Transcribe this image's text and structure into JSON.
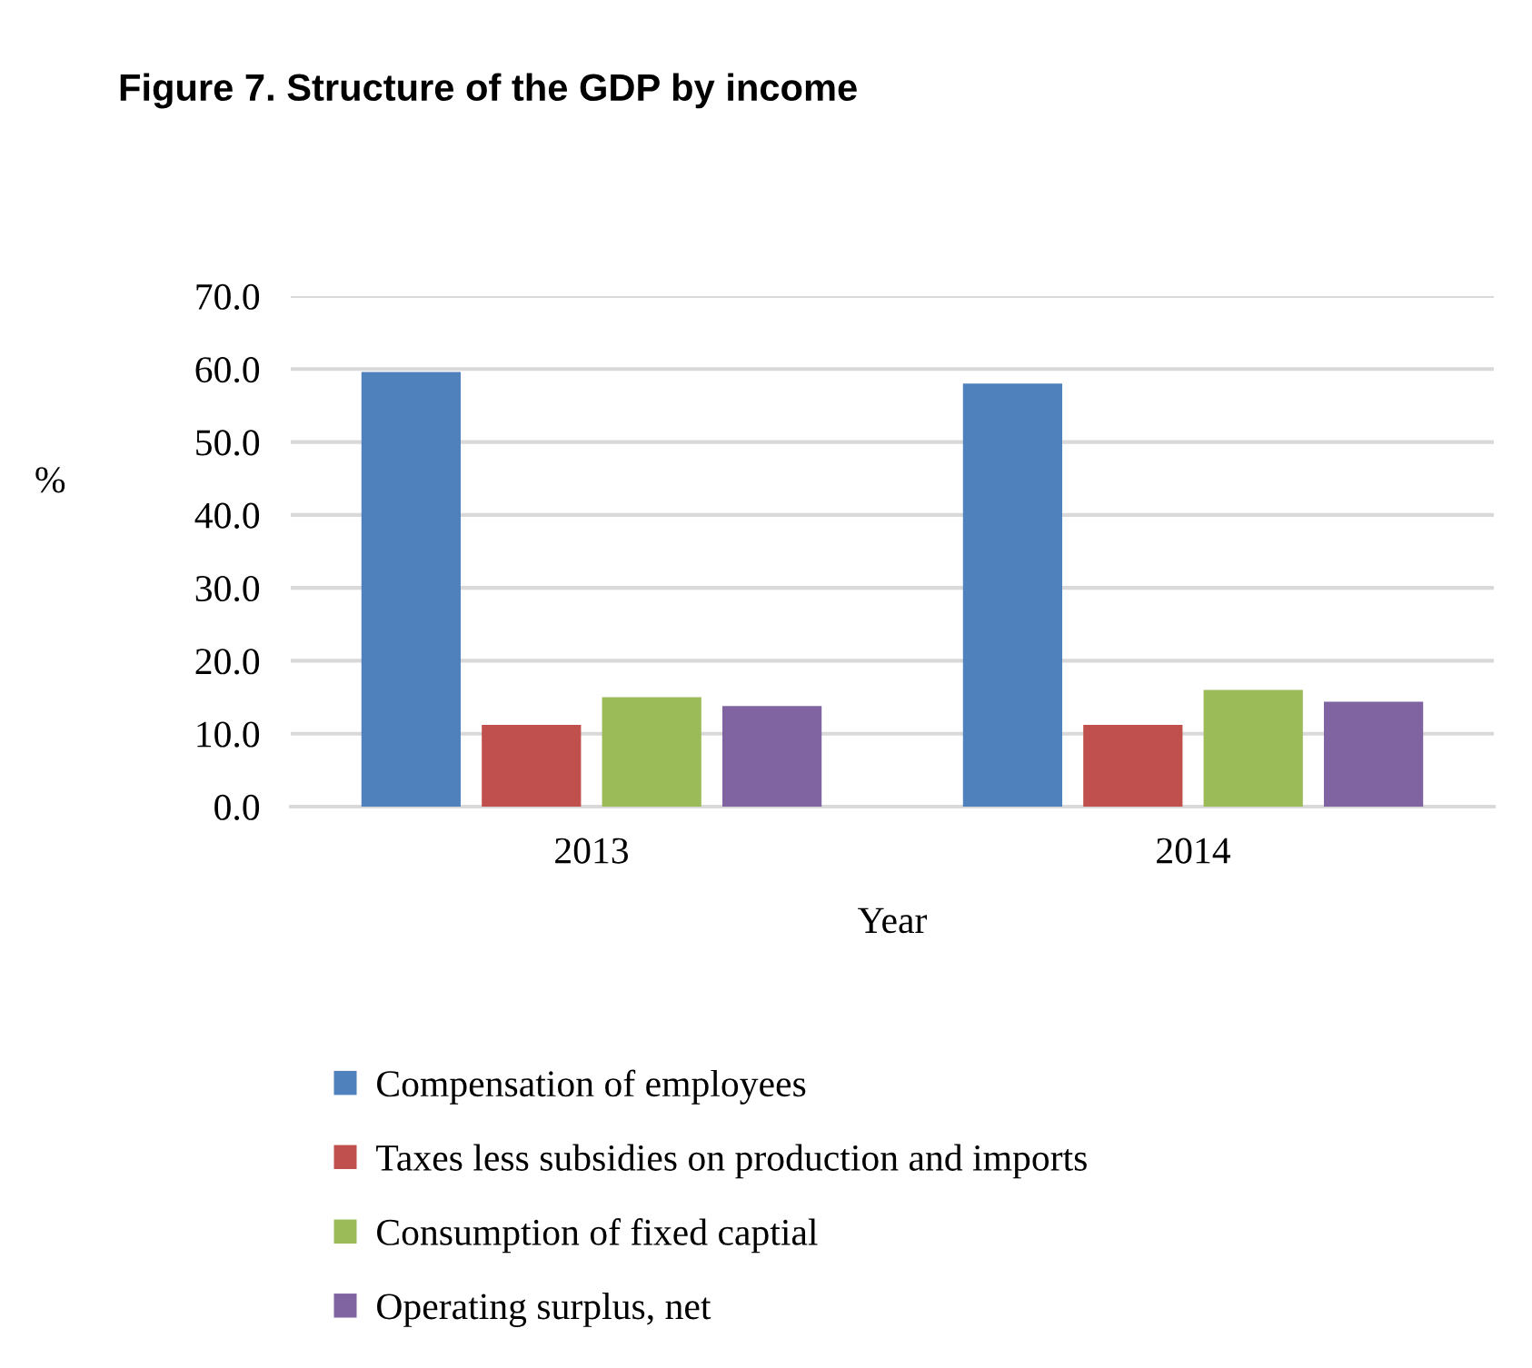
{
  "chart_data": {
    "type": "bar",
    "title": "Figure 7. Structure of the GDP by income",
    "xlabel": "Year",
    "ylabel": "%",
    "categories": [
      "2013",
      "2014"
    ],
    "series": [
      {
        "name": "Compensation of employees",
        "color": "#4f81bd",
        "values": [
          59.6,
          58.0
        ]
      },
      {
        "name": "Taxes less subsidies on production and imports",
        "color": "#c0504d",
        "values": [
          11.2,
          11.2
        ]
      },
      {
        "name": "Consumption of fixed captial",
        "color": "#9bbb59",
        "values": [
          15.0,
          16.0
        ]
      },
      {
        "name": "Operating surplus, net",
        "color": "#8064a2",
        "values": [
          13.8,
          14.4
        ]
      }
    ],
    "ylim": [
      0,
      70
    ],
    "yticks": [
      {
        "value": 0,
        "label": "0.0"
      },
      {
        "value": 10,
        "label": "10.0"
      },
      {
        "value": 20,
        "label": "20.0"
      },
      {
        "value": 30,
        "label": "30.0"
      },
      {
        "value": 40,
        "label": "40.0"
      },
      {
        "value": 50,
        "label": "50.0"
      },
      {
        "value": 60,
        "label": "60.0"
      },
      {
        "value": 70,
        "label": "70.0"
      }
    ],
    "grid": "y",
    "legend": "bottom"
  }
}
